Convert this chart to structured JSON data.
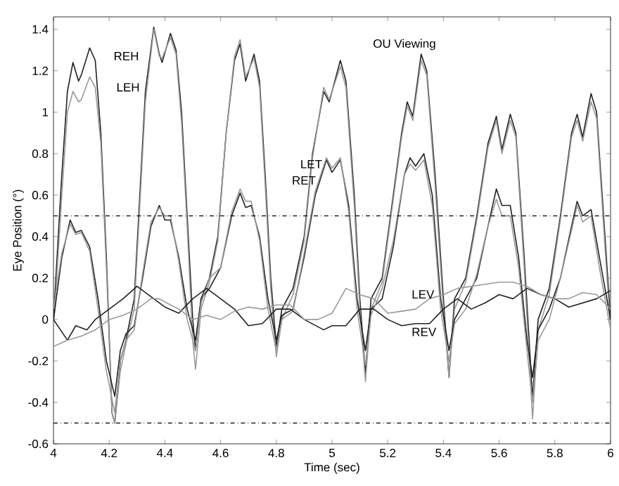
{
  "chart_data": {
    "type": "line",
    "title": "OU Viewing",
    "xlabel": "Time (sec)",
    "ylabel": "Eye Position (°)",
    "xlim": [
      4,
      6
    ],
    "ylim": [
      -0.6,
      1.46
    ],
    "xticks": [
      4,
      4.2,
      4.4,
      4.6,
      4.8,
      5,
      5.2,
      5.4,
      5.6,
      5.8,
      6
    ],
    "yticks": [
      -0.6,
      -0.4,
      -0.2,
      0,
      0.2,
      0.4,
      0.6,
      0.8,
      1,
      1.2,
      1.4
    ],
    "grid": false,
    "legend": false,
    "marker": "none",
    "line_style": "solid",
    "ref_lines": [
      {
        "axis": "y",
        "value": 0.5,
        "line_style": "dashed"
      },
      {
        "axis": "y",
        "value": -0.5,
        "line_style": "dashed"
      }
    ],
    "series": [
      {
        "name": "REH",
        "color": "#222222",
        "x": [
          4.0,
          4.03,
          4.05,
          4.07,
          4.09,
          4.1,
          4.13,
          4.15,
          4.17,
          4.19,
          4.21,
          4.22,
          4.24,
          4.26,
          4.29,
          4.31,
          4.33,
          4.36,
          4.38,
          4.39,
          4.42,
          4.44,
          4.46,
          4.48,
          4.5,
          4.51,
          4.53,
          4.56,
          4.59,
          4.62,
          4.65,
          4.67,
          4.69,
          4.72,
          4.74,
          4.76,
          4.78,
          4.8,
          4.82,
          4.86,
          4.9,
          4.93,
          4.97,
          4.99,
          5.03,
          5.05,
          5.08,
          5.1,
          5.12,
          5.14,
          5.18,
          5.21,
          5.25,
          5.27,
          5.29,
          5.32,
          5.34,
          5.37,
          5.4,
          5.42,
          5.44,
          5.48,
          5.52,
          5.56,
          5.59,
          5.61,
          5.64,
          5.66,
          5.69,
          5.72,
          5.74,
          5.78,
          5.82,
          5.86,
          5.88,
          5.9,
          5.93,
          5.95,
          5.98,
          6.0
        ],
        "values": [
          0.0,
          0.7,
          1.1,
          1.24,
          1.15,
          1.18,
          1.31,
          1.25,
          0.9,
          0.3,
          -0.45,
          -0.5,
          -0.2,
          -0.1,
          0.1,
          0.6,
          1.1,
          1.41,
          1.28,
          1.24,
          1.38,
          1.3,
          1.0,
          0.5,
          0.0,
          -0.15,
          0.1,
          0.2,
          0.4,
          0.9,
          1.25,
          1.33,
          1.15,
          1.28,
          1.15,
          0.7,
          0.2,
          -0.13,
          0.05,
          0.15,
          0.4,
          0.8,
          1.1,
          1.05,
          1.25,
          1.15,
          0.6,
          0.1,
          -0.26,
          0.1,
          0.2,
          0.5,
          0.9,
          1.05,
          0.98,
          1.28,
          1.2,
          0.7,
          0.1,
          -0.28,
          0.1,
          0.2,
          0.5,
          0.85,
          0.98,
          0.82,
          0.99,
          0.9,
          0.3,
          -0.38,
          0.0,
          0.15,
          0.5,
          0.9,
          0.99,
          0.88,
          1.09,
          1.0,
          0.4,
          0.0
        ]
      },
      {
        "name": "LEH",
        "color": "#999999",
        "x": [
          4.0,
          4.03,
          4.05,
          4.07,
          4.09,
          4.1,
          4.13,
          4.15,
          4.17,
          4.19,
          4.21,
          4.22,
          4.24,
          4.26,
          4.29,
          4.31,
          4.33,
          4.36,
          4.38,
          4.39,
          4.42,
          4.44,
          4.46,
          4.48,
          4.5,
          4.51,
          4.53,
          4.56,
          4.59,
          4.62,
          4.65,
          4.67,
          4.69,
          4.72,
          4.74,
          4.76,
          4.78,
          4.8,
          4.82,
          4.86,
          4.9,
          4.93,
          4.97,
          4.99,
          5.03,
          5.05,
          5.08,
          5.1,
          5.12,
          5.14,
          5.18,
          5.21,
          5.25,
          5.27,
          5.29,
          5.32,
          5.34,
          5.37,
          5.4,
          5.42,
          5.44,
          5.48,
          5.52,
          5.56,
          5.59,
          5.61,
          5.64,
          5.66,
          5.69,
          5.72,
          5.74,
          5.78,
          5.82,
          5.86,
          5.88,
          5.9,
          5.93,
          5.95,
          5.98,
          6.0
        ],
        "values": [
          -0.05,
          0.6,
          1.0,
          1.1,
          1.05,
          1.06,
          1.17,
          1.12,
          0.85,
          0.25,
          -0.45,
          -0.5,
          -0.25,
          -0.12,
          0.05,
          0.55,
          1.05,
          1.4,
          1.27,
          1.26,
          1.36,
          1.28,
          0.95,
          0.45,
          -0.1,
          -0.24,
          0.05,
          0.18,
          0.38,
          0.9,
          1.27,
          1.35,
          1.17,
          1.26,
          1.12,
          0.65,
          0.15,
          -0.18,
          0.0,
          0.12,
          0.38,
          0.78,
          1.12,
          1.06,
          1.22,
          1.12,
          0.55,
          0.05,
          -0.3,
          0.05,
          0.18,
          0.48,
          0.88,
          1.03,
          0.96,
          1.25,
          1.18,
          0.65,
          0.05,
          -0.28,
          0.05,
          0.18,
          0.48,
          0.83,
          0.96,
          0.8,
          0.96,
          0.88,
          0.25,
          -0.48,
          -0.05,
          0.12,
          0.48,
          0.88,
          0.96,
          0.86,
          1.05,
          0.97,
          0.35,
          -0.05
        ]
      },
      {
        "name": "RET",
        "color": "#222222",
        "x": [
          4.0,
          4.03,
          4.06,
          4.08,
          4.1,
          4.13,
          4.16,
          4.19,
          4.22,
          4.24,
          4.26,
          4.29,
          4.32,
          4.35,
          4.38,
          4.4,
          4.42,
          4.45,
          4.48,
          4.51,
          4.53,
          4.56,
          4.6,
          4.64,
          4.67,
          4.69,
          4.71,
          4.74,
          4.77,
          4.8,
          4.82,
          4.86,
          4.9,
          4.94,
          4.98,
          5.0,
          5.03,
          5.06,
          5.09,
          5.12,
          5.14,
          5.18,
          5.22,
          5.26,
          5.28,
          5.3,
          5.33,
          5.36,
          5.39,
          5.42,
          5.44,
          5.48,
          5.52,
          5.56,
          5.59,
          5.61,
          5.64,
          5.67,
          5.7,
          5.72,
          5.74,
          5.78,
          5.82,
          5.86,
          5.88,
          5.9,
          5.93,
          5.96,
          6.0
        ],
        "values": [
          0.0,
          0.3,
          0.48,
          0.42,
          0.43,
          0.35,
          0.1,
          -0.2,
          -0.37,
          -0.15,
          -0.07,
          -0.03,
          0.2,
          0.45,
          0.55,
          0.48,
          0.48,
          0.3,
          0.05,
          -0.1,
          0.1,
          0.15,
          0.25,
          0.5,
          0.61,
          0.54,
          0.55,
          0.4,
          0.1,
          -0.1,
          0.02,
          0.05,
          0.3,
          0.6,
          0.77,
          0.71,
          0.77,
          0.55,
          0.1,
          -0.15,
          0.05,
          0.1,
          0.35,
          0.7,
          0.78,
          0.74,
          0.8,
          0.6,
          0.1,
          -0.15,
          0.0,
          0.1,
          0.2,
          0.45,
          0.63,
          0.55,
          0.55,
          0.3,
          -0.1,
          -0.28,
          -0.05,
          0.05,
          0.2,
          0.45,
          0.57,
          0.5,
          0.53,
          0.3,
          0.0
        ]
      },
      {
        "name": "LET",
        "color": "#999999",
        "x": [
          4.0,
          4.03,
          4.06,
          4.08,
          4.1,
          4.13,
          4.16,
          4.19,
          4.22,
          4.24,
          4.26,
          4.29,
          4.32,
          4.35,
          4.38,
          4.4,
          4.42,
          4.45,
          4.48,
          4.51,
          4.53,
          4.56,
          4.6,
          4.64,
          4.67,
          4.69,
          4.71,
          4.74,
          4.77,
          4.8,
          4.82,
          4.86,
          4.9,
          4.94,
          4.98,
          5.0,
          5.03,
          5.06,
          5.09,
          5.12,
          5.14,
          5.18,
          5.22,
          5.26,
          5.28,
          5.3,
          5.33,
          5.36,
          5.39,
          5.42,
          5.44,
          5.48,
          5.52,
          5.56,
          5.59,
          5.61,
          5.64,
          5.67,
          5.7,
          5.72,
          5.74,
          5.78,
          5.82,
          5.86,
          5.88,
          5.9,
          5.93,
          5.96,
          6.0
        ],
        "values": [
          0.05,
          0.32,
          0.46,
          0.41,
          0.42,
          0.33,
          0.05,
          -0.25,
          -0.45,
          -0.2,
          -0.1,
          -0.05,
          0.22,
          0.47,
          0.54,
          0.5,
          0.5,
          0.28,
          0.0,
          -0.15,
          0.08,
          0.2,
          0.25,
          0.52,
          0.63,
          0.57,
          0.57,
          0.38,
          0.05,
          -0.15,
          0.0,
          0.04,
          0.32,
          0.62,
          0.78,
          0.73,
          0.78,
          0.52,
          0.05,
          -0.22,
          0.02,
          0.15,
          0.38,
          0.7,
          0.75,
          0.72,
          0.77,
          0.55,
          0.05,
          -0.2,
          -0.02,
          0.05,
          0.22,
          0.45,
          0.58,
          0.5,
          0.5,
          0.25,
          -0.15,
          -0.4,
          -0.1,
          0.0,
          0.2,
          0.43,
          0.55,
          0.47,
          0.5,
          0.25,
          -0.05
        ]
      },
      {
        "name": "REV",
        "color": "#222222",
        "x": [
          4.0,
          4.05,
          4.08,
          4.12,
          4.15,
          4.2,
          4.25,
          4.3,
          4.36,
          4.4,
          4.45,
          4.5,
          4.55,
          4.6,
          4.65,
          4.7,
          4.75,
          4.8,
          4.85,
          4.9,
          4.97,
          5.0,
          5.05,
          5.1,
          5.15,
          5.2,
          5.25,
          5.3,
          5.35,
          5.4,
          5.45,
          5.5,
          5.55,
          5.6,
          5.65,
          5.7,
          5.75,
          5.8,
          5.85,
          5.9,
          5.95,
          6.0
        ],
        "values": [
          0.0,
          -0.1,
          -0.03,
          -0.05,
          0.0,
          0.05,
          0.1,
          0.16,
          0.1,
          0.06,
          0.03,
          0.1,
          0.15,
          0.1,
          0.05,
          -0.03,
          -0.02,
          0.05,
          0.05,
          0.0,
          -0.05,
          -0.03,
          -0.03,
          0.05,
          0.05,
          0.0,
          -0.03,
          -0.02,
          -0.02,
          0.05,
          0.1,
          0.05,
          0.08,
          0.12,
          0.1,
          0.15,
          0.12,
          0.1,
          0.06,
          0.08,
          0.1,
          0.14
        ]
      },
      {
        "name": "LEV",
        "color": "#999999",
        "x": [
          4.0,
          4.05,
          4.1,
          4.15,
          4.2,
          4.25,
          4.3,
          4.35,
          4.38,
          4.42,
          4.45,
          4.5,
          4.55,
          4.6,
          4.65,
          4.7,
          4.75,
          4.8,
          4.85,
          4.9,
          4.95,
          5.0,
          5.05,
          5.1,
          5.15,
          5.2,
          5.25,
          5.3,
          5.35,
          5.4,
          5.45,
          5.5,
          5.55,
          5.6,
          5.65,
          5.7,
          5.75,
          5.8,
          5.85,
          5.9,
          5.95,
          6.0
        ],
        "values": [
          -0.13,
          -0.1,
          -0.08,
          -0.05,
          0.0,
          0.02,
          0.05,
          0.1,
          0.1,
          0.07,
          0.05,
          0.0,
          0.02,
          0.0,
          0.04,
          0.06,
          0.05,
          0.07,
          0.07,
          0.0,
          0.0,
          0.03,
          0.15,
          0.12,
          0.1,
          0.03,
          0.04,
          0.05,
          0.1,
          0.12,
          0.15,
          0.16,
          0.17,
          0.18,
          0.18,
          0.16,
          0.12,
          0.1,
          0.1,
          0.13,
          0.12,
          0.05
        ]
      }
    ]
  }
}
